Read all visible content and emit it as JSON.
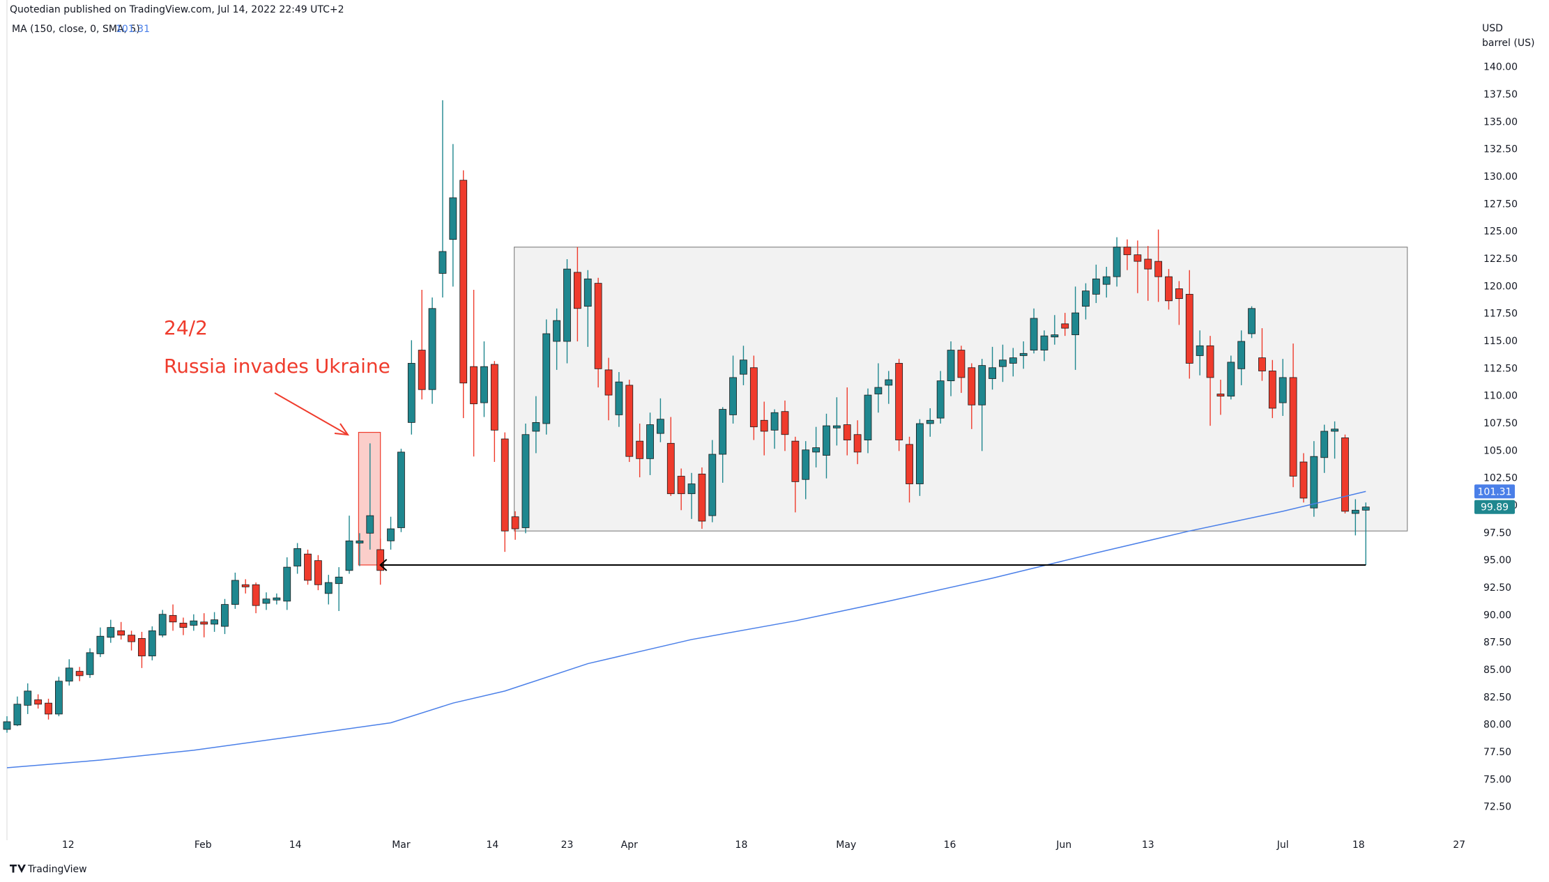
{
  "chart_data": {
    "type": "candlestick",
    "header": "Quotedian published on TradingView.com, Jul 14, 2022 22:49 UTC+2",
    "currency": "USD",
    "unit": "barrel (US)",
    "brand": "TradingView",
    "up_color": "#1f878f",
    "down_color": "#ef3b2c",
    "grid": false,
    "xlim": [
      0,
      141.2
    ],
    "xticks": [
      {
        "value": 5.9,
        "label": "12"
      },
      {
        "value": 18.9,
        "label": "Feb"
      },
      {
        "value": 27.8,
        "label": "14"
      },
      {
        "value": 38,
        "label": "Mar"
      },
      {
        "value": 46.8,
        "label": "14"
      },
      {
        "value": 54,
        "label": "23"
      },
      {
        "value": 60,
        "label": "Apr"
      },
      {
        "value": 70.8,
        "label": "18"
      },
      {
        "value": 80.9,
        "label": "May"
      },
      {
        "value": 90.9,
        "label": "16"
      },
      {
        "value": 101.9,
        "label": "Jun"
      },
      {
        "value": 110,
        "label": "13"
      },
      {
        "value": 123,
        "label": "Jul"
      },
      {
        "value": 130.3,
        "label": "18"
      },
      {
        "value": 140,
        "label": "27"
      }
    ],
    "ylim": [
      70,
      144.3
    ],
    "yticks": [
      {
        "value": 72.5,
        "label": "72.50"
      },
      {
        "value": 75,
        "label": "75.00"
      },
      {
        "value": 77.5,
        "label": "77.50"
      },
      {
        "value": 80,
        "label": "80.00"
      },
      {
        "value": 82.5,
        "label": "82.50"
      },
      {
        "value": 85,
        "label": "85.00"
      },
      {
        "value": 87.5,
        "label": "87.50"
      },
      {
        "value": 90,
        "label": "90.00"
      },
      {
        "value": 92.5,
        "label": "92.50"
      },
      {
        "value": 95,
        "label": "95.00"
      },
      {
        "value": 97.5,
        "label": "97.50"
      },
      {
        "value": 100,
        "label": "100.00"
      },
      {
        "value": 102.5,
        "label": "102.50"
      },
      {
        "value": 105,
        "label": "105.00"
      },
      {
        "value": 107.5,
        "label": "107.50"
      },
      {
        "value": 110,
        "label": "110.00"
      },
      {
        "value": 112.5,
        "label": "112.50"
      },
      {
        "value": 115,
        "label": "115.00"
      },
      {
        "value": 117.5,
        "label": "117.50"
      },
      {
        "value": 120,
        "label": "120.00"
      },
      {
        "value": 122.5,
        "label": "122.50"
      },
      {
        "value": 125,
        "label": "125.00"
      },
      {
        "value": 127.5,
        "label": "127.50"
      },
      {
        "value": 130,
        "label": "130.00"
      },
      {
        "value": 132.5,
        "label": "132.50"
      },
      {
        "value": 135,
        "label": "135.00"
      },
      {
        "value": 137.5,
        "label": "137.50"
      },
      {
        "value": 140,
        "label": "140.00"
      }
    ],
    "ohlc": {
      "open": [
        79.6,
        80.0,
        81.8,
        82.3,
        82.0,
        81.0,
        84.0,
        84.9,
        84.6,
        86.5,
        88.0,
        88.6,
        88.2,
        87.9,
        86.3,
        88.2,
        90.0,
        89.3,
        89.1,
        89.4,
        89.2,
        89.0,
        91.0,
        92.8,
        92.8,
        91.1,
        91.4,
        91.3,
        94.5,
        95.6,
        95.0,
        92.0,
        92.9,
        94.1,
        96.6,
        97.5,
        96.0,
        96.8,
        98.0,
        107.6,
        114.2,
        110.6,
        121.2,
        124.3,
        129.7,
        112.7,
        109.4,
        112.9,
        106.1,
        99.0,
        98.0,
        106.8,
        107.5,
        115.0,
        115.0,
        121.3,
        118.2,
        120.3,
        112.4,
        108.3,
        111.0,
        105.9,
        104.3,
        106.6,
        105.7,
        102.7,
        101.1,
        102.9,
        99.1,
        104.7,
        108.3,
        112.0,
        112.6,
        107.8,
        106.9,
        108.6,
        105.9,
        102.4,
        104.9,
        104.6,
        107.1,
        107.4,
        106.5,
        106.0,
        110.2,
        111.0,
        113.0,
        105.6,
        102.0,
        107.5,
        108.0,
        111.4,
        114.2,
        112.6,
        109.2,
        111.6,
        112.7,
        113.0,
        113.7,
        114.2,
        114.2,
        115.4,
        116.6,
        115.6,
        118.2,
        119.3,
        120.2,
        120.9,
        123.6,
        122.9,
        122.5,
        122.3,
        120.9,
        119.8,
        119.3,
        113.7,
        114.6,
        110.2,
        110.0,
        112.5,
        115.7,
        113.5,
        112.3,
        109.4,
        111.7,
        104.0,
        99.8,
        104.4,
        106.8,
        106.2,
        99.3,
        99.6
      ],
      "high": [
        80.8,
        82.6,
        83.8,
        82.8,
        82.4,
        84.4,
        86.0,
        85.3,
        87.0,
        88.9,
        89.6,
        89.4,
        88.6,
        88.5,
        89.0,
        90.5,
        91.0,
        89.8,
        90.1,
        90.2,
        90.3,
        91.5,
        93.9,
        93.3,
        93.0,
        92.1,
        92.0,
        95.3,
        96.6,
        96.0,
        95.5,
        93.7,
        94.4,
        99.1,
        97.5,
        105.7,
        97.0,
        99.0,
        105.2,
        115.1,
        119.7,
        119.0,
        137.0,
        133.0,
        130.6,
        119.7,
        115.0,
        113.2,
        106.7,
        99.5,
        107.5,
        110.0,
        117.0,
        118.0,
        122.5,
        123.6,
        121.5,
        120.8,
        113.5,
        112.2,
        111.5,
        107.5,
        108.5,
        109.8,
        108.1,
        103.4,
        103.0,
        103.5,
        106.0,
        109.0,
        113.7,
        114.6,
        113.7,
        109.5,
        108.8,
        109.6,
        106.3,
        105.9,
        107.2,
        108.4,
        109.9,
        110.8,
        107.8,
        110.7,
        113.0,
        112.3,
        113.4,
        106.3,
        107.9,
        108.9,
        112.3,
        115.0,
        114.6,
        113.0,
        113.4,
        114.5,
        114.7,
        114.4,
        115.0,
        118.0,
        116.0,
        117.4,
        117.6,
        120.0,
        120.3,
        122.0,
        121.8,
        124.5,
        124.3,
        124.2,
        123.7,
        125.2,
        121.6,
        120.5,
        121.5,
        116.0,
        115.5,
        111.5,
        113.7,
        116.0,
        118.2,
        116.2,
        113.3,
        113.4,
        114.8,
        104.8,
        105.9,
        107.4,
        107.7,
        106.5,
        100.6,
        100.3
      ],
      "low": [
        79.3,
        79.9,
        81.0,
        81.5,
        80.5,
        80.8,
        83.6,
        84.0,
        84.3,
        86.2,
        87.5,
        87.8,
        86.8,
        85.2,
        85.9,
        88.0,
        88.6,
        88.2,
        88.6,
        88.0,
        88.5,
        88.3,
        90.6,
        92.0,
        90.2,
        90.5,
        91.0,
        90.5,
        93.8,
        92.8,
        92.3,
        91.0,
        90.4,
        93.8,
        94.5,
        96.0,
        92.8,
        96.0,
        97.6,
        106.5,
        109.7,
        109.3,
        119.0,
        120.0,
        108.0,
        104.5,
        108.1,
        104.0,
        95.8,
        96.9,
        97.5,
        104.8,
        106.5,
        112.4,
        113.0,
        115.0,
        114.5,
        110.8,
        107.8,
        107.2,
        104.0,
        102.6,
        102.8,
        105.8,
        100.9,
        99.6,
        98.8,
        97.9,
        98.5,
        102.1,
        107.5,
        111.0,
        106.0,
        104.6,
        105.2,
        105.0,
        99.4,
        100.6,
        103.5,
        102.5,
        105.5,
        104.6,
        103.8,
        104.8,
        108.5,
        109.3,
        105.0,
        100.3,
        100.9,
        106.3,
        107.5,
        110.0,
        110.3,
        107.0,
        105.0,
        110.6,
        111.3,
        111.8,
        112.5,
        113.9,
        113.2,
        114.7,
        115.5,
        112.4,
        117.0,
        118.5,
        119.0,
        120.0,
        121.5,
        119.4,
        118.7,
        118.6,
        117.9,
        116.5,
        111.6,
        111.9,
        107.3,
        108.3,
        109.7,
        111.0,
        115.3,
        111.4,
        108.0,
        108.2,
        101.7,
        100.3,
        99.0,
        103.0,
        104.3,
        99.3,
        97.3,
        94.6
      ],
      "close": [
        80.3,
        81.9,
        83.1,
        81.9,
        81.0,
        84.0,
        85.2,
        84.5,
        86.6,
        88.1,
        88.9,
        88.2,
        87.6,
        86.3,
        88.6,
        90.1,
        89.4,
        88.9,
        89.5,
        89.2,
        89.6,
        91.0,
        93.2,
        92.6,
        90.9,
        91.5,
        91.6,
        94.4,
        96.1,
        93.2,
        92.8,
        93.0,
        93.5,
        96.8,
        96.8,
        99.1,
        94.1,
        97.9,
        104.9,
        113.0,
        110.6,
        118.0,
        123.2,
        128.1,
        111.2,
        109.3,
        112.7,
        106.9,
        97.7,
        97.9,
        106.5,
        107.6,
        115.7,
        116.9,
        121.6,
        118.0,
        120.7,
        112.5,
        110.1,
        111.3,
        104.5,
        104.3,
        107.4,
        107.9,
        101.1,
        101.1,
        102.0,
        98.6,
        104.7,
        108.8,
        111.7,
        113.3,
        107.2,
        106.8,
        108.5,
        106.5,
        102.2,
        105.1,
        105.3,
        107.3,
        107.3,
        106.0,
        104.9,
        110.1,
        110.8,
        111.5,
        106.0,
        102.0,
        107.5,
        107.8,
        111.4,
        114.2,
        111.7,
        109.2,
        112.8,
        112.6,
        113.3,
        113.5,
        113.9,
        117.1,
        115.5,
        115.6,
        116.2,
        117.6,
        119.6,
        120.7,
        120.9,
        123.6,
        122.9,
        122.3,
        121.6,
        120.9,
        118.7,
        118.9,
        113.0,
        114.6,
        111.7,
        110.0,
        113.1,
        115.0,
        118.0,
        112.3,
        108.9,
        111.7,
        102.7,
        100.7,
        104.5,
        106.8,
        107.0,
        99.5,
        99.6,
        99.89
      ]
    },
    "ma": {
      "name": "MA (150, close, 0, SMA, 5)",
      "color": "#4a7fe8",
      "x": [
        0,
        9,
        18,
        28,
        37,
        43,
        48,
        56,
        66,
        76,
        85,
        95,
        105,
        114,
        123,
        131
      ],
      "values": [
        76.1,
        76.8,
        77.7,
        79.0,
        80.2,
        82.0,
        83.1,
        85.6,
        87.8,
        89.5,
        91.3,
        93.4,
        95.7,
        97.7,
        99.5,
        101.31
      ]
    },
    "annotations": {
      "date_label": "24/2",
      "text": "Russia invades Ukraine",
      "color": "#ef3b2c",
      "highlight": {
        "x": [
          33.9,
          36.0
        ],
        "y": [
          94.6,
          106.7
        ]
      },
      "range_box": {
        "x": [
          48.9,
          135.0
        ],
        "y": [
          97.7,
          123.6
        ]
      },
      "support_line": {
        "x": [
          36.0,
          131.0
        ],
        "y": 94.6
      }
    }
  }
}
